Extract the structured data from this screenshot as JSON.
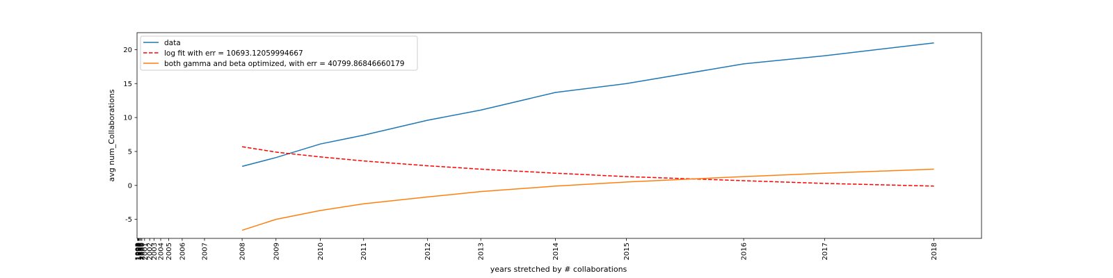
{
  "chart_data": {
    "type": "line",
    "title": "",
    "xlabel": "years stretched by # collaborations",
    "ylabel": "avg num_Collaborations",
    "x_tick_labels": [
      "1990",
      "1991",
      "1992",
      "1993",
      "1994",
      "1995",
      "1996",
      "1997",
      "1998",
      "1999",
      "2000",
      "2001",
      "2002",
      "2003",
      "2004",
      "2005",
      "2006",
      "2007",
      "2008",
      "2009",
      "2010",
      "2011",
      "2012",
      "2013",
      "2014",
      "2015",
      "2016",
      "2017",
      "2018"
    ],
    "x_tick_positions": [
      0,
      0.03,
      0.06,
      0.1,
      0.14,
      0.2,
      0.3,
      0.5,
      0.8,
      1.2,
      1.6,
      2.6,
      4.5,
      6.1,
      8.6,
      11.6,
      16.6,
      24.9,
      38.9,
      51.5,
      68.0,
      84.1,
      107.9,
      127.7,
      155.5,
      181.9,
      225.5,
      255.6,
      296.3
    ],
    "xlim": [
      -0.2,
      314.0
    ],
    "ylim": [
      -7.8,
      22.5
    ],
    "y_ticks": [
      -5,
      0,
      5,
      10,
      15,
      20
    ],
    "grid": false,
    "legend_position": "top-left",
    "series": [
      {
        "name": "data",
        "color": "#1f77b4",
        "style": "solid",
        "x": [
          38.9,
          51.5,
          68.0,
          84.1,
          107.9,
          127.7,
          155.5,
          181.9,
          225.5,
          255.6,
          296.3
        ],
        "y": [
          2.8,
          4.1,
          6.1,
          7.4,
          9.6,
          11.1,
          13.7,
          15.0,
          17.9,
          19.1,
          21.0
        ]
      },
      {
        "name": "log fit with err = 10693.12059994667",
        "color": "#ff0000",
        "style": "dashed",
        "x": [
          38.9,
          51.5,
          68.0,
          84.1,
          107.9,
          127.7,
          155.5,
          181.9,
          225.5,
          255.6,
          296.3
        ],
        "y": [
          5.7,
          4.9,
          4.2,
          3.6,
          2.9,
          2.4,
          1.8,
          1.3,
          0.7,
          0.3,
          -0.1
        ]
      },
      {
        "name": "both gamma and beta optimized, with err = 40799.86846660179",
        "color": "#ff7f0e",
        "style": "solid",
        "x": [
          38.9,
          51.5,
          68.0,
          84.1,
          107.9,
          127.7,
          155.5,
          181.9,
          225.5,
          255.6,
          296.3
        ],
        "y": [
          -6.6,
          -5.0,
          -3.7,
          -2.7,
          -1.7,
          -0.9,
          -0.1,
          0.5,
          1.3,
          1.8,
          2.4
        ]
      }
    ]
  }
}
